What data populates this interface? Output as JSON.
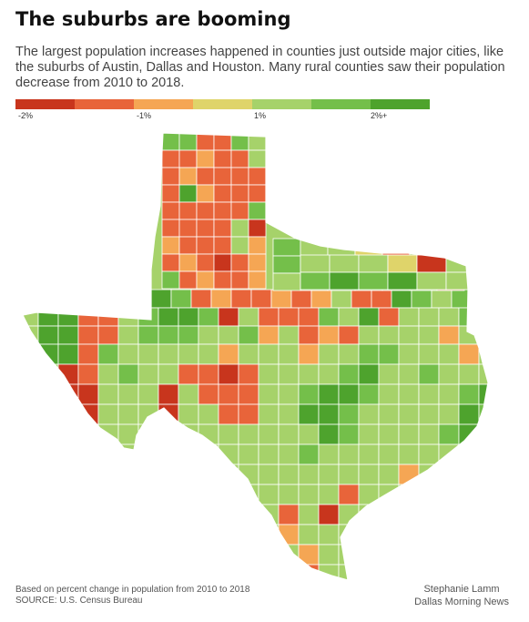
{
  "title": "The suburbs are booming",
  "subtitle": "The largest population increases happened in counties just outside major cities, like the suburbs of Austin, Dallas and Houston. Many rural counties saw their population decrease from 2010 to 2018.",
  "legend": {
    "colors": [
      "#c8351d",
      "#e8643a",
      "#f5a654",
      "#dfd46a",
      "#a6d26a",
      "#74bf4a",
      "#4ea32d"
    ],
    "labels": [
      "-2%",
      "-1%",
      "1%",
      "2%+"
    ]
  },
  "map": {
    "region": "Texas counties",
    "metric": "percent change in population, 2010 to 2018"
  },
  "footer": {
    "note": "Based on percent change in population from 2010 to 2018",
    "source": "SOURCE: U.S. Census Bureau",
    "author": "Stephanie Lamm",
    "publication": "Dallas Morning News"
  }
}
